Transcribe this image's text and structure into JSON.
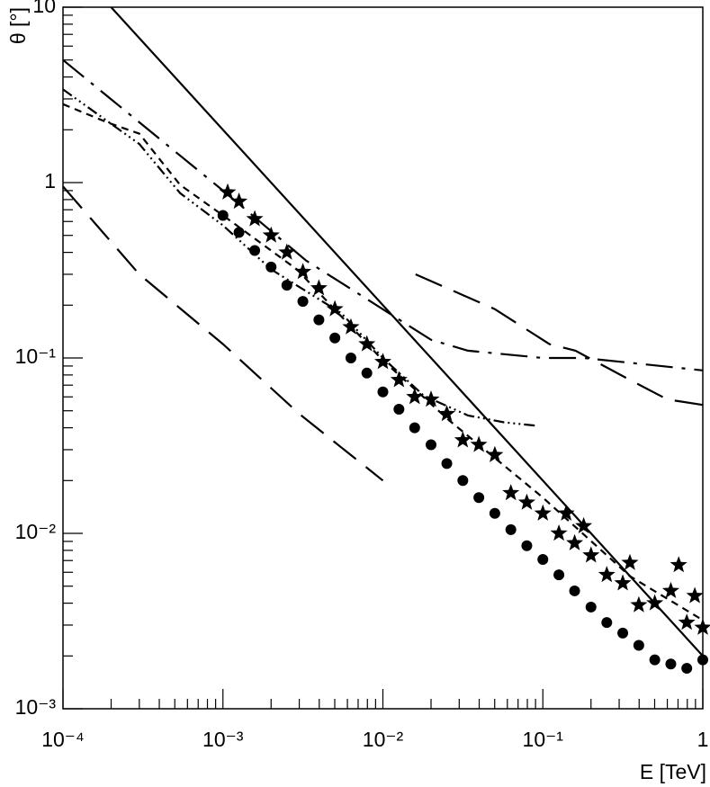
{
  "chart_data": {
    "type": "line",
    "x_label": "E [TeV]",
    "y_label": "θ [°]",
    "log_x": true,
    "log_y": true,
    "xlim": [
      0.0001,
      1
    ],
    "ylim": [
      0.001,
      10
    ],
    "xticks": [
      {
        "value": 0.0001,
        "label": "10⁻⁴"
      },
      {
        "value": 0.001,
        "label": "10⁻³"
      },
      {
        "value": 0.01,
        "label": "10⁻²"
      },
      {
        "value": 0.1,
        "label": "10⁻¹"
      },
      1
    ],
    "yticks": [
      {
        "value": 0.001,
        "label": "10⁻³"
      },
      {
        "value": 0.01,
        "label": "10⁻²"
      },
      {
        "value": 0.1,
        "label": "10⁻¹"
      },
      1,
      10
    ],
    "series": [
      {
        "style": "line",
        "dash": "solid",
        "color": "#000000",
        "x": [
          0.0002,
          1
        ],
        "values": [
          10,
          0.002
        ]
      },
      {
        "style": "line",
        "dash": "long-dash",
        "color": "#000000",
        "x": [
          0.0001,
          0.0003,
          0.001,
          0.003,
          0.01
        ],
        "values": [
          0.95,
          0.3,
          0.12,
          0.048,
          0.02
        ]
      },
      {
        "style": "line",
        "dash": "long-dash",
        "color": "#000000",
        "x": [
          0.016,
          0.05,
          0.11,
          0.16,
          0.35,
          0.6,
          1
        ],
        "values": [
          0.3,
          0.19,
          0.12,
          0.11,
          0.075,
          0.058,
          0.054
        ]
      },
      {
        "style": "line",
        "dash": "dash-dot",
        "color": "#000000",
        "x": [
          0.0001,
          0.001,
          0.0033,
          0.02,
          0.034,
          0.1,
          0.18,
          1
        ],
        "values": [
          5,
          0.9,
          0.36,
          0.127,
          0.11,
          0.1,
          0.1,
          0.085
        ]
      },
      {
        "style": "line",
        "dash": "short-dash",
        "color": "#000000",
        "x": [
          0.0001,
          0.00019,
          0.0003,
          0.00054,
          0.001,
          0.0029,
          0.01,
          0.026,
          0.1,
          0.35,
          1
        ],
        "values": [
          2.8,
          2.2,
          1.9,
          0.97,
          0.65,
          0.32,
          0.097,
          0.044,
          0.016,
          0.0057,
          0.0032
        ]
      },
      {
        "style": "line",
        "dash": "dash-dot-dot",
        "color": "#000000",
        "x": [
          0.0001,
          0.0003,
          0.00054,
          0.001,
          0.002,
          0.0055,
          0.01,
          0.018,
          0.034,
          0.057,
          0.093
        ],
        "values": [
          3.4,
          1.66,
          0.87,
          0.57,
          0.32,
          0.18,
          0.1,
          0.061,
          0.047,
          0.043,
          0.041
        ]
      },
      {
        "style": "dots",
        "color": "#000000",
        "x": [
          0.001,
          0.00126,
          0.00158,
          0.002,
          0.00251,
          0.00316,
          0.00398,
          0.00501,
          0.00631,
          0.00794,
          0.01,
          0.0126,
          0.0158,
          0.02,
          0.0251,
          0.0316,
          0.0398,
          0.0501,
          0.0631,
          0.0794,
          0.1,
          0.126,
          0.158,
          0.2,
          0.251,
          0.316,
          0.398,
          0.501,
          0.631,
          0.794,
          1
        ],
        "values": [
          0.65,
          0.52,
          0.41,
          0.33,
          0.26,
          0.21,
          0.165,
          0.13,
          0.1,
          0.082,
          0.064,
          0.051,
          0.04,
          0.032,
          0.025,
          0.02,
          0.016,
          0.013,
          0.0105,
          0.0085,
          0.0071,
          0.0058,
          0.0047,
          0.0038,
          0.0031,
          0.0027,
          0.0023,
          0.0019,
          0.0018,
          0.0017,
          0.0019
        ]
      },
      {
        "style": "stars",
        "color": "#000000",
        "x": [
          0.00107,
          0.00126,
          0.00158,
          0.002,
          0.00251,
          0.00316,
          0.00398,
          0.00501,
          0.00631,
          0.00794,
          0.01,
          0.0126,
          0.0158,
          0.02,
          0.0251,
          0.0316,
          0.0398,
          0.0501,
          0.0631,
          0.0794,
          0.1,
          0.126,
          0.14,
          0.158,
          0.18,
          0.2,
          0.251,
          0.316,
          0.35,
          0.398,
          0.501,
          0.631,
          0.707,
          0.794,
          0.891,
          1
        ],
        "values": [
          0.88,
          0.78,
          0.62,
          0.5,
          0.4,
          0.31,
          0.25,
          0.19,
          0.15,
          0.12,
          0.095,
          0.075,
          0.06,
          0.058,
          0.048,
          0.034,
          0.032,
          0.028,
          0.017,
          0.015,
          0.013,
          0.01,
          0.013,
          0.0088,
          0.011,
          0.0075,
          0.0058,
          0.0052,
          0.0068,
          0.0039,
          0.004,
          0.0047,
          0.0066,
          0.0031,
          0.0044,
          0.0029
        ]
      }
    ]
  }
}
